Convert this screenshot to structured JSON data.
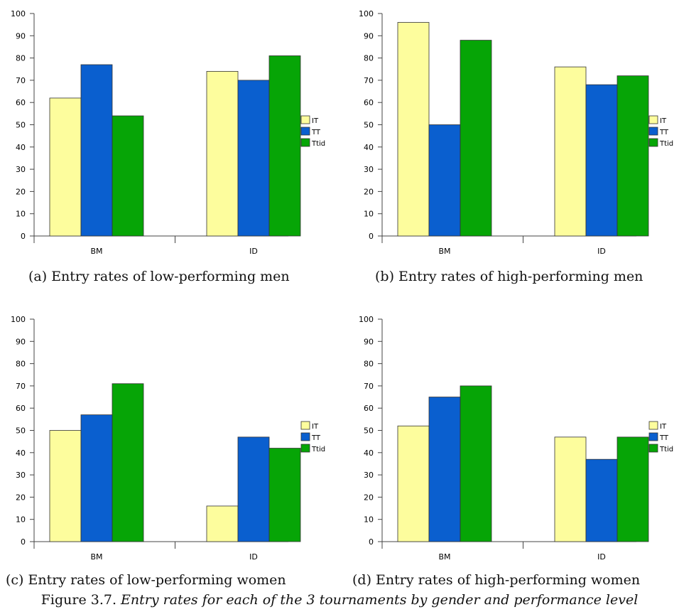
{
  "colors": {
    "IT": "#fdfd9d",
    "TT": "#0a5fcf",
    "Ttid": "#06a506"
  },
  "chart_data": [
    {
      "type": "bar",
      "caption": "(a) Entry rates of low-performing men",
      "categories": [
        "BM",
        "ID"
      ],
      "ylim": [
        0,
        100
      ],
      "yticks": [
        0,
        10,
        20,
        30,
        40,
        50,
        60,
        70,
        80,
        90,
        100
      ],
      "legend_position": "right",
      "series": [
        {
          "name": "IT",
          "values": [
            62,
            74
          ]
        },
        {
          "name": "TT",
          "values": [
            77,
            70
          ]
        },
        {
          "name": "Ttid",
          "values": [
            54,
            81
          ]
        }
      ]
    },
    {
      "type": "bar",
      "caption": "(b) Entry rates of high-performing men",
      "categories": [
        "BM",
        "ID"
      ],
      "ylim": [
        0,
        100
      ],
      "yticks": [
        0,
        10,
        20,
        30,
        40,
        50,
        60,
        70,
        80,
        90,
        100
      ],
      "legend_position": "right",
      "series": [
        {
          "name": "IT",
          "values": [
            96,
            76
          ]
        },
        {
          "name": "TT",
          "values": [
            50,
            68
          ]
        },
        {
          "name": "Ttid",
          "values": [
            88,
            72
          ]
        }
      ]
    },
    {
      "type": "bar",
      "caption": "(c) Entry rates of low-performing women",
      "categories": [
        "BM",
        "ID"
      ],
      "ylim": [
        0,
        100
      ],
      "yticks": [
        0,
        10,
        20,
        30,
        40,
        50,
        60,
        70,
        80,
        90,
        100
      ],
      "legend_position": "right",
      "series": [
        {
          "name": "IT",
          "values": [
            50,
            16
          ]
        },
        {
          "name": "TT",
          "values": [
            57,
            47
          ]
        },
        {
          "name": "Ttid",
          "values": [
            71,
            42
          ]
        }
      ]
    },
    {
      "type": "bar",
      "caption": "(d) Entry rates of high-performing women",
      "categories": [
        "BM",
        "ID"
      ],
      "ylim": [
        0,
        100
      ],
      "yticks": [
        0,
        10,
        20,
        30,
        40,
        50,
        60,
        70,
        80,
        90,
        100
      ],
      "legend_position": "right",
      "series": [
        {
          "name": "IT",
          "values": [
            52,
            47
          ]
        },
        {
          "name": "TT",
          "values": [
            65,
            37
          ]
        },
        {
          "name": "Ttid",
          "values": [
            70,
            47
          ]
        }
      ]
    }
  ],
  "figure_caption": {
    "label": "Figure 3.7.",
    "text": "Entry rates for each of the 3 tournaments by gender and performance level"
  }
}
